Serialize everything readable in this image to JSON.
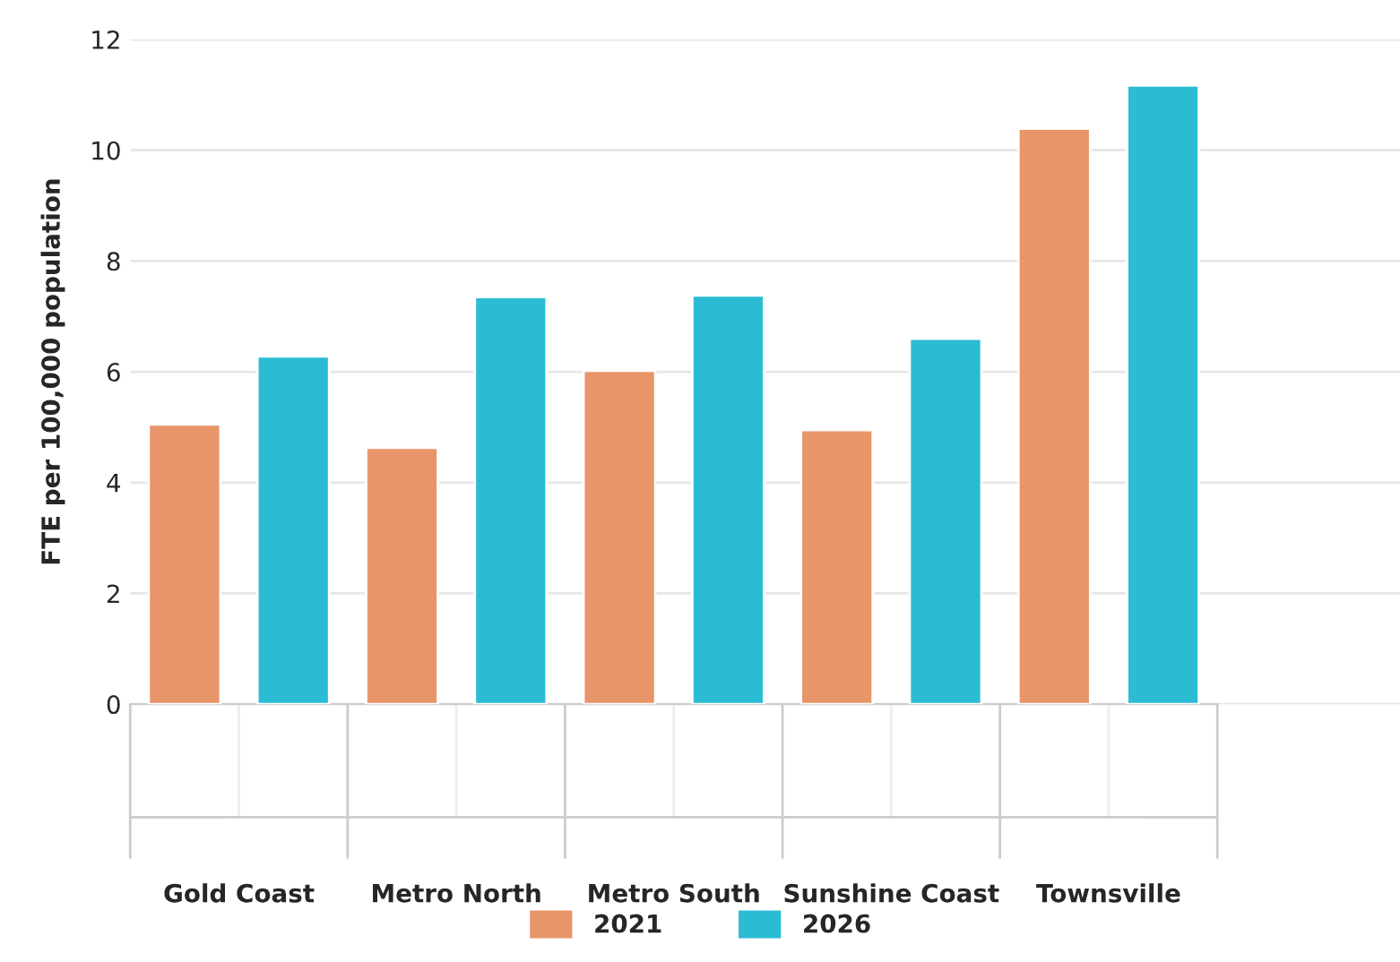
{
  "chart_data": {
    "type": "bar",
    "ylabel": "FTE per 100,000 population",
    "categories": [
      "Gold Coast",
      "Metro North",
      "Metro South",
      "Sunshine Coast",
      "Townsville"
    ],
    "series": [
      {
        "name": "2021",
        "color": "#e8956a",
        "values": [
          5.05,
          4.63,
          6.02,
          4.95,
          10.39
        ]
      },
      {
        "name": "2026",
        "color": "#2bbcd4",
        "values": [
          6.28,
          7.35,
          7.38,
          6.6,
          11.17
        ]
      }
    ],
    "ylim": [
      0,
      12
    ],
    "yticks": [
      0,
      2,
      4,
      6,
      8,
      10,
      12
    ],
    "grid": "y",
    "legend": "bottom"
  }
}
